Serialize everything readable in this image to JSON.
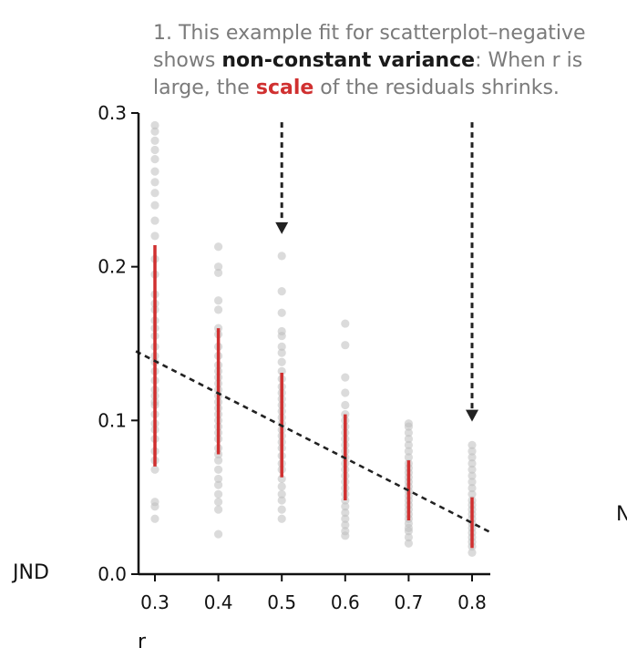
{
  "annotation": {
    "line1": "1. This example fit for scatterplot–negative",
    "line2_pre": "shows ",
    "line2_bold": "non-constant variance",
    "line2_post": ": When r is",
    "line3_pre": "large, the ",
    "line3_red": "scale",
    "line3_post": " of the residuals shrinks."
  },
  "edge_text": "N",
  "colors": {
    "points": "#bdbdbd",
    "bars": "#d03030",
    "fit_line": "#222222",
    "axis": "#111111",
    "annotation_text": "#7a7a7a"
  },
  "chart_data": {
    "type": "scatter",
    "xlabel": "r",
    "ylabel": "JND",
    "xticks": [
      "0.3",
      "0.4",
      "0.5",
      "0.6",
      "0.7",
      "0.8"
    ],
    "yticks": [
      "0.0",
      "0.1",
      "0.2",
      "0.3"
    ],
    "xlim": [
      0.27,
      0.83
    ],
    "ylim": [
      0.0,
      0.3
    ],
    "grid": false,
    "series": [
      {
        "x": 0.3,
        "values": [
          0.036,
          0.044,
          0.047,
          0.068,
          0.074,
          0.08,
          0.088,
          0.094,
          0.098,
          0.104,
          0.11,
          0.112,
          0.116,
          0.12,
          0.126,
          0.132,
          0.138,
          0.142,
          0.148,
          0.155,
          0.16,
          0.165,
          0.172,
          0.176,
          0.182,
          0.195,
          0.205,
          0.22,
          0.23,
          0.24,
          0.248,
          0.255,
          0.262,
          0.27,
          0.276,
          0.282,
          0.288,
          0.292
        ]
      },
      {
        "x": 0.4,
        "values": [
          0.026,
          0.042,
          0.047,
          0.052,
          0.058,
          0.062,
          0.068,
          0.074,
          0.078,
          0.082,
          0.088,
          0.092,
          0.096,
          0.1,
          0.104,
          0.108,
          0.112,
          0.116,
          0.12,
          0.124,
          0.128,
          0.132,
          0.136,
          0.142,
          0.148,
          0.156,
          0.16,
          0.172,
          0.178,
          0.196,
          0.2,
          0.213
        ]
      },
      {
        "x": 0.5,
        "values": [
          0.036,
          0.042,
          0.048,
          0.052,
          0.057,
          0.062,
          0.068,
          0.072,
          0.077,
          0.082,
          0.086,
          0.09,
          0.094,
          0.098,
          0.102,
          0.106,
          0.11,
          0.114,
          0.118,
          0.122,
          0.127,
          0.132,
          0.138,
          0.144,
          0.148,
          0.155,
          0.158,
          0.17,
          0.184,
          0.207
        ]
      },
      {
        "x": 0.6,
        "values": [
          0.025,
          0.028,
          0.032,
          0.036,
          0.04,
          0.044,
          0.048,
          0.052,
          0.056,
          0.06,
          0.064,
          0.068,
          0.072,
          0.076,
          0.08,
          0.084,
          0.088,
          0.092,
          0.096,
          0.1,
          0.104,
          0.11,
          0.118,
          0.128,
          0.149,
          0.163
        ]
      },
      {
        "x": 0.7,
        "values": [
          0.02,
          0.024,
          0.028,
          0.03,
          0.033,
          0.036,
          0.039,
          0.042,
          0.045,
          0.048,
          0.051,
          0.054,
          0.057,
          0.06,
          0.063,
          0.066,
          0.069,
          0.072,
          0.076,
          0.08,
          0.084,
          0.088,
          0.092,
          0.096,
          0.098
        ]
      },
      {
        "x": 0.8,
        "values": [
          0.014,
          0.018,
          0.021,
          0.024,
          0.027,
          0.03,
          0.033,
          0.036,
          0.039,
          0.042,
          0.045,
          0.048,
          0.052,
          0.056,
          0.06,
          0.064,
          0.068,
          0.072,
          0.076,
          0.08,
          0.084
        ]
      }
    ],
    "bars": [
      {
        "x": 0.3,
        "low": 0.07,
        "high": 0.214
      },
      {
        "x": 0.4,
        "low": 0.078,
        "high": 0.16
      },
      {
        "x": 0.5,
        "low": 0.063,
        "high": 0.131
      },
      {
        "x": 0.6,
        "low": 0.048,
        "high": 0.104
      },
      {
        "x": 0.7,
        "low": 0.035,
        "high": 0.074
      },
      {
        "x": 0.8,
        "low": 0.017,
        "high": 0.05
      }
    ],
    "fit_line": {
      "x": [
        0.27,
        0.83
      ],
      "y": [
        0.145,
        0.027
      ]
    },
    "arrows": [
      {
        "x": 0.5,
        "y_from": 0.294,
        "y_to": 0.226
      },
      {
        "x": 0.8,
        "y_from": 0.294,
        "y_to": 0.104
      }
    ]
  }
}
